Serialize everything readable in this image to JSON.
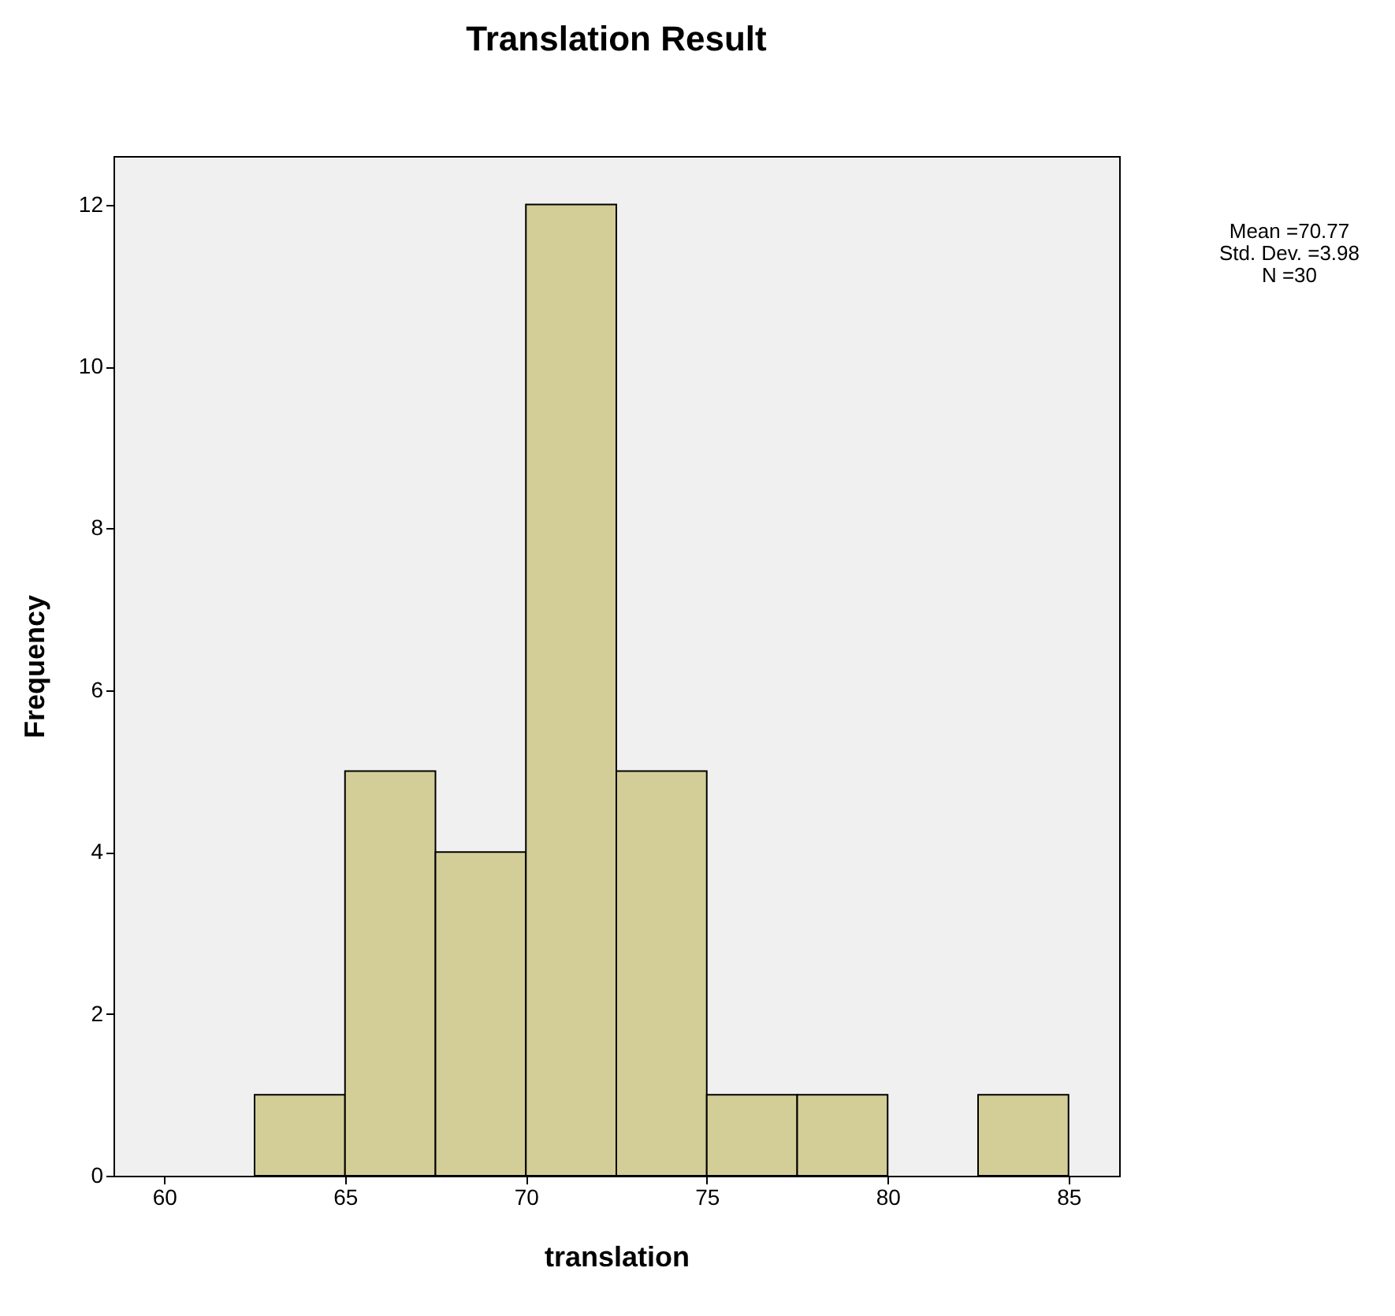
{
  "chart_data": {
    "type": "histogram",
    "title": "Translation Result",
    "xlabel": "translation",
    "ylabel": "Frequency",
    "bins": [
      62.5,
      65,
      67.5,
      70,
      72.5,
      75,
      77.5,
      80,
      82.5,
      85
    ],
    "values": [
      1,
      5,
      4,
      12,
      5,
      1,
      1,
      0,
      1
    ],
    "color": "#d3ce97",
    "xlim": [
      58.6,
      86.4
    ],
    "xticks": [
      60,
      65,
      70,
      75,
      80,
      85
    ],
    "ylim": [
      0,
      12.6
    ],
    "yticks": [
      0,
      2,
      4,
      6,
      8,
      10,
      12
    ],
    "grid": false,
    "annotations": [
      "Mean =70.77",
      "Std. Dev. =3.98",
      "N =30"
    ]
  }
}
